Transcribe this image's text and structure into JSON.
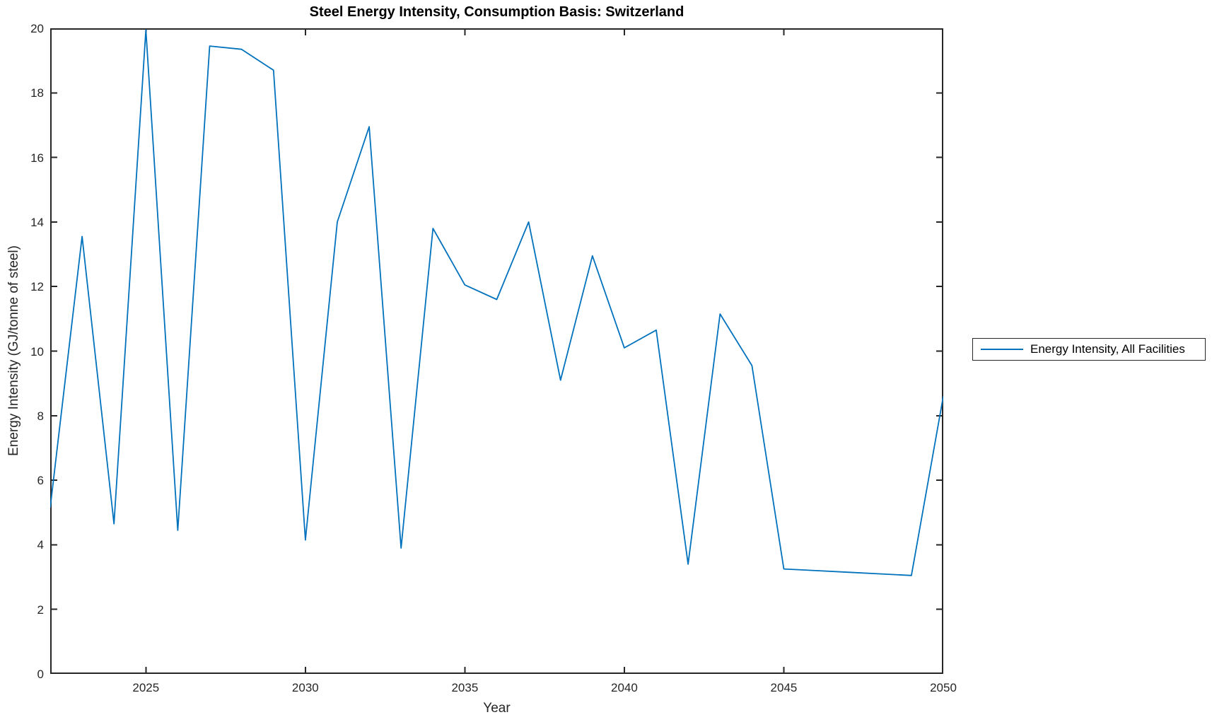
{
  "title": "Steel Energy Intensity, Consumption Basis: Switzerland",
  "xlabel": "Year",
  "ylabel": "Energy Intensity (GJ/tonne of steel)",
  "legend": {
    "label": "Energy Intensity, All Facilities",
    "position": "right-outside"
  },
  "colors": {
    "line": "#0072BD",
    "axis": "#262626",
    "title": "#000000",
    "background": "#ffffff"
  },
  "chart_data": {
    "type": "line",
    "title": "Steel Energy Intensity, Consumption Basis: Switzerland",
    "xlabel": "Year",
    "ylabel": "Energy Intensity (GJ/tonne of steel)",
    "xlim": [
      2022,
      2050
    ],
    "ylim": [
      0,
      20
    ],
    "x_ticks": [
      2025,
      2030,
      2035,
      2040,
      2045,
      2050
    ],
    "y_ticks": [
      0,
      2,
      4,
      6,
      8,
      10,
      12,
      14,
      16,
      18,
      20
    ],
    "grid": false,
    "legend_position": "right-outside",
    "series": [
      {
        "name": "Energy Intensity, All Facilities",
        "color": "#0072BD",
        "x": [
          2022,
          2023,
          2024,
          2025,
          2026,
          2027,
          2028,
          2029,
          2030,
          2031,
          2032,
          2033,
          2034,
          2035,
          2036,
          2037,
          2038,
          2039,
          2040,
          2041,
          2042,
          2043,
          2044,
          2045,
          2046,
          2047,
          2048,
          2049,
          2050
        ],
        "y": [
          5.15,
          13.55,
          4.65,
          19.95,
          4.45,
          19.45,
          19.35,
          18.7,
          4.15,
          14.0,
          16.95,
          3.9,
          13.8,
          12.05,
          11.6,
          14.0,
          9.1,
          12.95,
          10.1,
          10.65,
          3.4,
          11.15,
          9.55,
          3.25,
          3.2,
          3.15,
          3.1,
          3.05,
          8.6
        ]
      }
    ]
  }
}
